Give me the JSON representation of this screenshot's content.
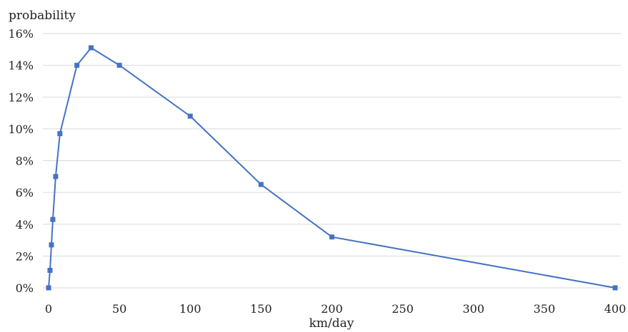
{
  "chart_data": {
    "type": "line",
    "title": "",
    "xlabel": "km/day",
    "ylabel": "probability",
    "xlim": [
      0,
      400
    ],
    "ylim": [
      0,
      0.16
    ],
    "x_ticks": [
      0,
      50,
      100,
      150,
      200,
      250,
      300,
      350,
      400
    ],
    "y_ticks": [
      0,
      0.02,
      0.04,
      0.06,
      0.08,
      0.1,
      0.12,
      0.14,
      0.16
    ],
    "x_tick_labels": [
      "0",
      "50",
      "100",
      "150",
      "200",
      "250",
      "300",
      "350",
      "400"
    ],
    "y_tick_labels": [
      "0%",
      "2%",
      "4%",
      "6%",
      "8%",
      "10%",
      "12%",
      "14%",
      "16%"
    ],
    "grid": "horizontal",
    "series": [
      {
        "color": "#4472c4",
        "marker": "square",
        "x": [
          0,
          1,
          2,
          3,
          5,
          8,
          20,
          30,
          50,
          100,
          150,
          200,
          400
        ],
        "y": [
          0.0,
          0.011,
          0.027,
          0.043,
          0.07,
          0.097,
          0.14,
          0.151,
          0.14,
          0.108,
          0.065,
          0.032,
          0.0
        ]
      }
    ]
  }
}
